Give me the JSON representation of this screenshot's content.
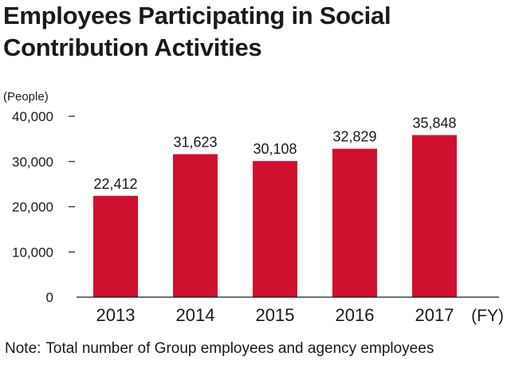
{
  "title": "Employees Participating in Social Contribution Activities",
  "note": {
    "prefix": "Note:",
    "text": "Total number of Group employees and agency employees"
  },
  "colors": {
    "bar": "#d0102f",
    "text": "#1a1a1a",
    "axis": "#1a1a1a"
  },
  "chart_data": {
    "type": "bar",
    "title": "Employees Participating in Social Contribution Activities",
    "ylabel": "(People)",
    "xlabel": "(FY)",
    "categories": [
      "2013",
      "2014",
      "2015",
      "2016",
      "2017"
    ],
    "values": [
      22412,
      31623,
      30108,
      32829,
      35848
    ],
    "value_labels": [
      "22,412",
      "31,623",
      "30,108",
      "32,829",
      "35,848"
    ],
    "ylim": [
      0,
      40000
    ],
    "yticks": [
      0,
      10000,
      20000,
      30000,
      40000
    ],
    "ytick_labels": [
      "0",
      "10,000",
      "20,000",
      "30,000",
      "40,000"
    ],
    "grid": false,
    "legend": "none"
  }
}
